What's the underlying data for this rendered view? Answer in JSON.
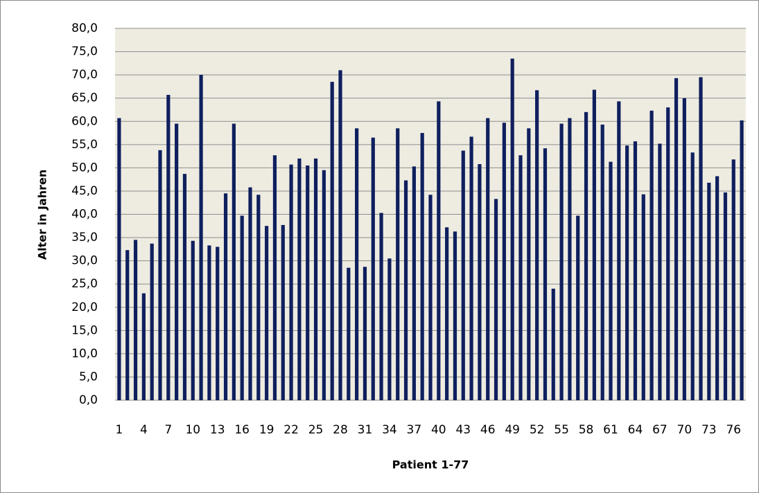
{
  "chart_data": {
    "type": "bar",
    "y_label": "Alter in Jahren",
    "x_label": "Patient 1-77",
    "categories": [
      1,
      null,
      null,
      4,
      null,
      null,
      7,
      null,
      null,
      10,
      null,
      null,
      13,
      null,
      null,
      16,
      null,
      null,
      19,
      null,
      null,
      22,
      null,
      null,
      25,
      null,
      null,
      28,
      null,
      null,
      31,
      null,
      null,
      34,
      null,
      null,
      37,
      null,
      null,
      40,
      null,
      null,
      43,
      null,
      null,
      46,
      null,
      null,
      49,
      null,
      null,
      52,
      null,
      null,
      55,
      null,
      null,
      58,
      null,
      null,
      61,
      null,
      null,
      64,
      null,
      null,
      67,
      null,
      null,
      70,
      null,
      null,
      73,
      null,
      null,
      76,
      null
    ],
    "values": [
      60.7,
      32.3,
      34.5,
      23.0,
      33.7,
      53.8,
      65.7,
      59.5,
      48.7,
      34.3,
      70.0,
      33.3,
      33.0,
      44.5,
      59.5,
      39.7,
      45.8,
      44.2,
      37.5,
      52.7,
      37.7,
      50.7,
      52.0,
      50.5,
      52.0,
      49.5,
      68.5,
      71.0,
      28.5,
      58.5,
      28.7,
      56.5,
      40.3,
      30.5,
      58.5,
      47.3,
      50.3,
      57.5,
      44.2,
      64.3,
      37.2,
      36.3,
      53.7,
      56.7,
      50.8,
      60.7,
      43.3,
      59.7,
      73.5,
      52.7,
      58.5,
      66.7,
      54.2,
      24.0,
      59.5,
      60.7,
      39.7,
      62.0,
      66.8,
      59.3,
      51.3,
      64.3,
      54.8,
      55.7,
      44.3,
      62.3,
      55.2,
      63.0,
      69.3,
      65.0,
      53.3,
      69.5,
      46.8,
      48.2,
      44.7,
      51.8,
      60.2
    ],
    "color": "#0f1f5e",
    "ylim": [
      0,
      80
    ],
    "yticks": [
      {
        "value": 0,
        "label": "0,0"
      },
      {
        "value": 5,
        "label": "5,0"
      },
      {
        "value": 10,
        "label": "10,0"
      },
      {
        "value": 15,
        "label": "15,0"
      },
      {
        "value": 20,
        "label": "20,0"
      },
      {
        "value": 25,
        "label": "25,0"
      },
      {
        "value": 30,
        "label": "30,0"
      },
      {
        "value": 35,
        "label": "35,0"
      },
      {
        "value": 40,
        "label": "40,0"
      },
      {
        "value": 45,
        "label": "45,0"
      },
      {
        "value": 50,
        "label": "50,0"
      },
      {
        "value": 55,
        "label": "55,0"
      },
      {
        "value": 60,
        "label": "60,0"
      },
      {
        "value": 65,
        "label": "65,0"
      },
      {
        "value": 70,
        "label": "70,0"
      },
      {
        "value": 75,
        "label": "75,0"
      },
      {
        "value": 80,
        "label": "80,0"
      }
    ],
    "grid": true
  }
}
